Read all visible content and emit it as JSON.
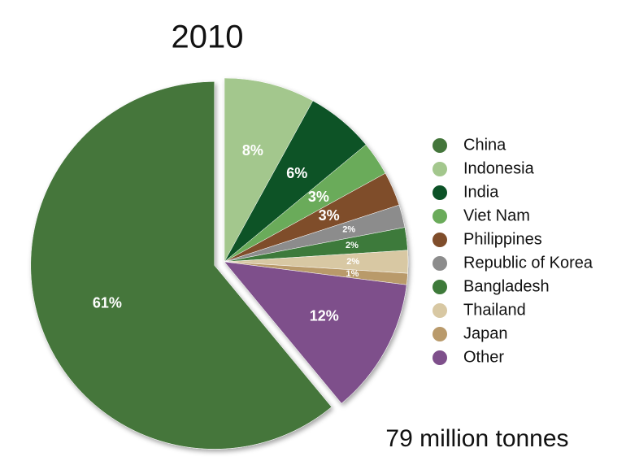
{
  "chart_data": {
    "type": "pie",
    "title": "2010",
    "subtitle": "79 million tonnes",
    "categories": [
      "China",
      "Indonesia",
      "India",
      "Viet Nam",
      "Philippines",
      "Republic of Korea",
      "Bangladesh",
      "Thailand",
      "Japan",
      "Other"
    ],
    "values": [
      61,
      8,
      6,
      3,
      3,
      2,
      2,
      2,
      1,
      12
    ],
    "value_labels": [
      "61%",
      "8%",
      "6%",
      "3%",
      "3%",
      "2%",
      "2%",
      "2%",
      "1%",
      "12%"
    ],
    "colors": [
      "#44763b",
      "#a3c78d",
      "#0c5227",
      "#6aab5a",
      "#7f4d2b",
      "#8c8c8c",
      "#3e7a3a",
      "#d8c8a3",
      "#b99a6b",
      "#7e4f8b"
    ],
    "legend": "right"
  }
}
